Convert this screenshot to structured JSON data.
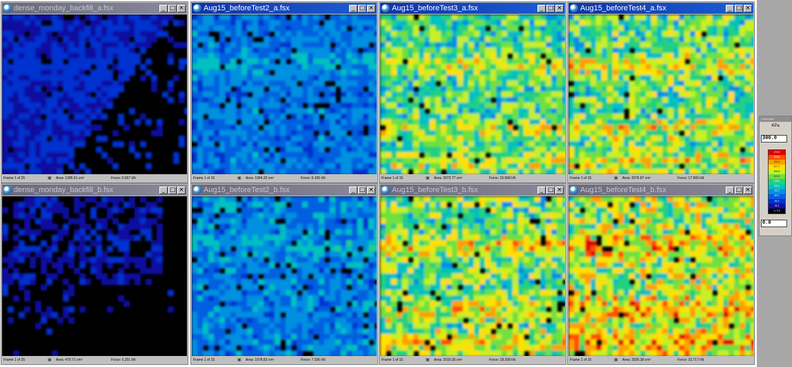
{
  "windows": [
    {
      "title": "dense_monday_backfill_a.fsx",
      "frame": "Frame 1 of 25",
      "area": "Area: 1395.61 cm²",
      "force": "Force: 0.667 kN",
      "active": false,
      "intensity": 0.1,
      "coverage": 0.55
    },
    {
      "title": "Aug15_beforeTest2_a.fsx",
      "frame": "Frame 1 of 15",
      "area": "Area: 1994.32 cm²",
      "force": "Force: 6.165 kN",
      "active": true,
      "intensity": 0.28,
      "coverage": 0.93
    },
    {
      "title": "Aug15_beforeTest3_a.fsx",
      "frame": "Frame 1 of 15",
      "area": "Area: 2072.77 cm²",
      "force": "Force: 15.998 kN",
      "active": true,
      "intensity": 0.55,
      "coverage": 0.97
    },
    {
      "title": "Aug15_beforeTest4_a.fsx",
      "frame": "Frame 1 of 15",
      "area": "Area: 2075.87 cm²",
      "force": "Force: 17.906 kN",
      "active": true,
      "intensity": 0.58,
      "coverage": 0.98
    },
    {
      "title": "dense_monday_backfill_b.fsx",
      "frame": "Frame 1 of 25",
      "area": "Area: 470.71 cm²",
      "force": "Force: 0.201 kN",
      "active": false,
      "intensity": 0.08,
      "coverage": 0.25
    },
    {
      "title": "Aug15_beforeTest2_b.fsx",
      "frame": "Frame 1 of 15",
      "area": "Area: 1978.83 cm²",
      "force": "Force: 7.026 kN",
      "active": false,
      "intensity": 0.3,
      "coverage": 0.93
    },
    {
      "title": "Aug15_beforeTest3_b.fsx",
      "frame": "Frame 1 of 15",
      "area": "Area: 2016.00 cm²",
      "force": "Force: 18.208 kN",
      "active": false,
      "intensity": 0.6,
      "coverage": 0.96
    },
    {
      "title": "Aug15_beforeTest4_b.fsx",
      "frame": "Frame 1 of 15",
      "area": "Area: 2026.38 cm²",
      "force": "Force: 23.717 kN",
      "active": false,
      "intensity": 0.68,
      "coverage": 0.97
    }
  ],
  "controls": {
    "minimize": "_",
    "maximize": "□",
    "close": "×"
  },
  "status_icon": "area-icon",
  "legend": {
    "header": "Calibration",
    "unit": "KPa",
    "max_value": "300.0",
    "min_value": "0.0",
    "scale_labels": [
      "276.9",
      "253.8",
      "230.8",
      "207.7",
      "184.6",
      "161.5",
      "138.5",
      "115.4",
      "92.3",
      "69.2",
      "46.2",
      "23.1",
      "<= 0.0"
    ],
    "scale_colors": [
      "#e00000",
      "#ff5000",
      "#ffa000",
      "#ffe000",
      "#c8f020",
      "#70e040",
      "#20d080",
      "#00c0c0",
      "#0090e0",
      "#0060e0",
      "#0030d0",
      "#1010a0",
      "#000000"
    ]
  },
  "colors": {
    "title_active": "#1034a6",
    "title_inactive": "#6a6a7c",
    "chrome": "#c0c0c0",
    "side_panel": "#a7a7a7"
  }
}
